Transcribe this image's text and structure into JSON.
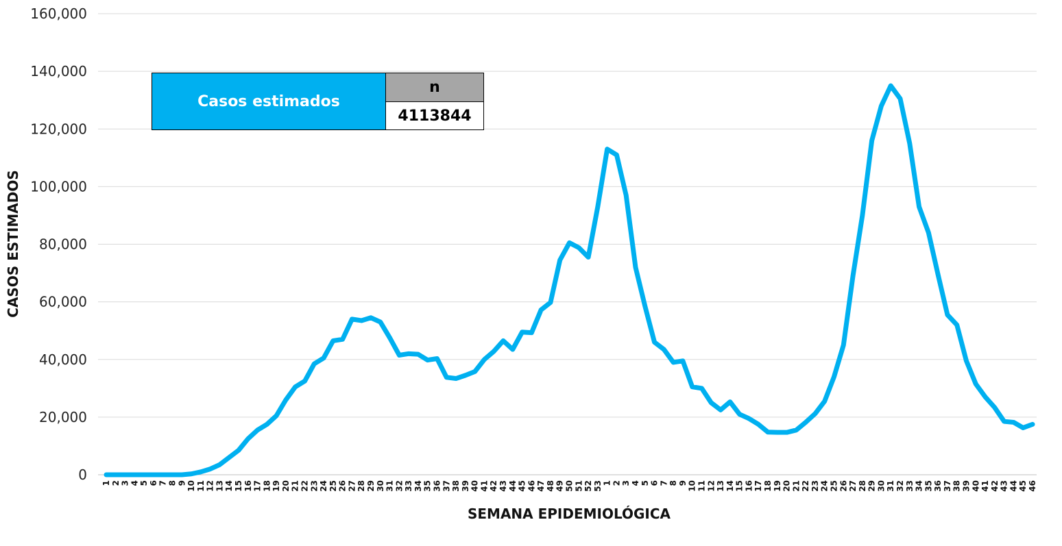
{
  "chart_data": {
    "type": "line",
    "xlabel": "SEMANA EPIDEMIOLÓGICA",
    "ylabel": "CASOS ESTIMADOS",
    "ylim": [
      0,
      160000
    ],
    "yticks": [
      "0",
      "20,000",
      "40,000",
      "60,000",
      "80,000",
      "100,000",
      "120,000",
      "140,000",
      "160,000"
    ],
    "grid": true,
    "line_color": "#00b0f0",
    "categories": [
      "1",
      "2",
      "3",
      "4",
      "5",
      "6",
      "7",
      "8",
      "9",
      "10",
      "11",
      "12",
      "13",
      "14",
      "15",
      "16",
      "17",
      "18",
      "19",
      "20",
      "21",
      "22",
      "23",
      "24",
      "25",
      "26",
      "27",
      "28",
      "29",
      "30",
      "31",
      "32",
      "33",
      "34",
      "35",
      "36",
      "37",
      "38",
      "39",
      "40",
      "41",
      "42",
      "43",
      "44",
      "45",
      "46",
      "47",
      "48",
      "49",
      "50",
      "51",
      "52",
      "53",
      "1",
      "2",
      "3",
      "4",
      "5",
      "6",
      "7",
      "8",
      "9",
      "10",
      "11",
      "12",
      "13",
      "14",
      "15",
      "16",
      "17",
      "18",
      "19",
      "20",
      "21",
      "22",
      "23",
      "24",
      "25",
      "26",
      "27",
      "28",
      "29",
      "30",
      "31",
      "32",
      "33",
      "34",
      "35",
      "36",
      "37",
      "38",
      "39",
      "40",
      "41",
      "42",
      "43",
      "44",
      "45",
      "46"
    ],
    "series": [
      {
        "values": [
          0,
          0,
          0,
          0,
          0,
          0,
          0,
          0,
          0,
          300,
          1000,
          2000,
          3500,
          6000,
          8500,
          12500,
          15500,
          17500,
          20500,
          26000,
          30500,
          32500,
          38500,
          40500,
          46500,
          47000,
          54000,
          53500,
          54500,
          53000,
          47500,
          41500,
          42000,
          41800,
          39800,
          40300,
          33800,
          33400,
          34500,
          35800,
          40000,
          42800,
          46500,
          43500,
          49500,
          49300,
          57200,
          59800,
          74500,
          80500,
          78800,
          75500,
          93000,
          113000,
          111000,
          97000,
          72000,
          58500,
          46000,
          43500,
          39000,
          39500,
          30500,
          30000,
          25000,
          22500,
          25300,
          21000,
          19500,
          17500,
          14800,
          14700,
          14700,
          15500,
          18200,
          21200,
          25500,
          34000,
          45000,
          69000,
          90000,
          116000,
          128000,
          135000,
          130500,
          115000,
          93000,
          84000,
          69500,
          55500,
          52000,
          39500,
          31500,
          27000,
          23300,
          18500,
          18200,
          16300,
          17500
        ]
      }
    ],
    "legend_table": {
      "label": "Casos estimados",
      "header": "n",
      "value": "4113844"
    }
  }
}
